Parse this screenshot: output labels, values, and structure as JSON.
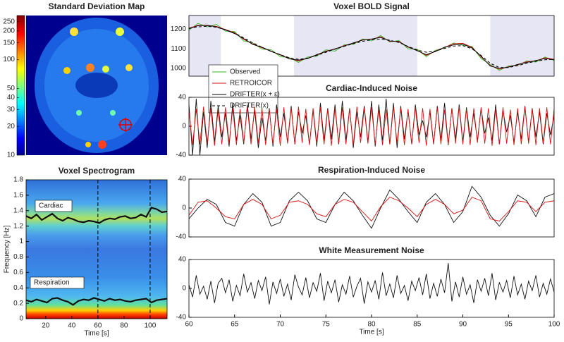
{
  "chart_data": [
    {
      "type": "image",
      "title": "Standard Deviation Map",
      "colormap": "jet",
      "clog": true,
      "clim": [
        10,
        290
      ],
      "cticks": [
        10,
        20,
        30,
        40,
        50,
        100,
        150,
        200,
        250
      ]
    },
    {
      "type": "spectrogram",
      "title": "Voxel Spectrogram",
      "xlabel": "Time [s]",
      "ylabel": "Frequency [Hz]",
      "xlim": [
        5,
        113
      ],
      "xticks": [
        20,
        40,
        60,
        80,
        100
      ],
      "ylim": [
        0,
        1.8
      ],
      "yticks": [
        0,
        0.2,
        0.4,
        0.6,
        0.8,
        1,
        1.2,
        1.4,
        1.6,
        1.8
      ],
      "vlines": [
        60,
        100
      ],
      "x": [
        5,
        9,
        13,
        17,
        21,
        25,
        29,
        33,
        37,
        41,
        45,
        49,
        53,
        57,
        61,
        65,
        69,
        73,
        77,
        81,
        85,
        89,
        93,
        97,
        101,
        105,
        109,
        113
      ],
      "series": [
        {
          "name": "Cardiac",
          "color": "#111111",
          "values": [
            1.33,
            1.3,
            1.35,
            1.28,
            1.32,
            1.36,
            1.3,
            1.27,
            1.31,
            1.29,
            1.26,
            1.25,
            1.27,
            1.26,
            1.24,
            1.28,
            1.3,
            1.29,
            1.32,
            1.33,
            1.3,
            1.31,
            1.35,
            1.32,
            1.44,
            1.42,
            1.38,
            1.39
          ]
        },
        {
          "name": "Respiration",
          "color": "#111111",
          "values": [
            0.24,
            0.22,
            0.25,
            0.23,
            0.21,
            0.26,
            0.27,
            0.24,
            0.22,
            0.18,
            0.23,
            0.25,
            0.24,
            0.27,
            0.25,
            0.23,
            0.26,
            0.24,
            0.25,
            0.23,
            0.22,
            0.24,
            0.25,
            0.26,
            0.21,
            0.24,
            0.25,
            0.26
          ]
        }
      ]
    },
    {
      "type": "line",
      "title": "Voxel BOLD Signal",
      "xlim": [
        60,
        100
      ],
      "ylim": [
        960,
        1270
      ],
      "yticks": [
        1000,
        1100,
        1200
      ],
      "shaded": [
        [
          60,
          63.5
        ],
        [
          71.5,
          85
        ],
        [
          93,
          100
        ]
      ],
      "legend": "lower left",
      "x": [
        60,
        61,
        62,
        63,
        64,
        65,
        66,
        67,
        68,
        69,
        70,
        71,
        72,
        73,
        74,
        75,
        76,
        77,
        78,
        79,
        80,
        81,
        82,
        83,
        84,
        85,
        86,
        87,
        88,
        89,
        90,
        91,
        92,
        93,
        94,
        95,
        96,
        97,
        98,
        99,
        100
      ],
      "series": [
        {
          "name": "Observed",
          "color": "#33bb22",
          "values": [
            1195,
            1230,
            1212,
            1225,
            1190,
            1188,
            1140,
            1130,
            1098,
            1095,
            1060,
            1055,
            1030,
            1058,
            1062,
            1095,
            1088,
            1120,
            1122,
            1150,
            1140,
            1168,
            1135,
            1142,
            1100,
            1098,
            1060,
            1092,
            1105,
            1130,
            1118,
            1112,
            1050,
            1020,
            990,
            1012,
            1015,
            1038,
            1032,
            1058,
            1040
          ]
        },
        {
          "name": "RETROICOR",
          "color": "#dd1111",
          "values": [
            1205,
            1220,
            1218,
            1215,
            1198,
            1182,
            1148,
            1125,
            1105,
            1088,
            1068,
            1050,
            1038,
            1052,
            1068,
            1088,
            1098,
            1116,
            1128,
            1146,
            1148,
            1162,
            1138,
            1138,
            1108,
            1092,
            1066,
            1088,
            1108,
            1126,
            1128,
            1108,
            1058,
            1015,
            996,
            1008,
            1018,
            1034,
            1038,
            1054,
            1046
          ]
        },
        {
          "name": "DRIFTER(x + ε)",
          "color": "#000000",
          "values": [
            1202,
            1218,
            1220,
            1212,
            1196,
            1178,
            1152,
            1122,
            1108,
            1086,
            1070,
            1048,
            1042,
            1050,
            1070,
            1086,
            1100,
            1114,
            1130,
            1144,
            1150,
            1158,
            1140,
            1136,
            1110,
            1090,
            1070,
            1086,
            1108,
            1120,
            1124,
            1104,
            1062,
            1012,
            1000,
            1006,
            1020,
            1030,
            1040,
            1050,
            1044
          ]
        },
        {
          "name": "DRIFTER(x)",
          "color": "#000000",
          "dash": true,
          "values": [
            1205,
            1212,
            1215,
            1210,
            1198,
            1180,
            1156,
            1130,
            1108,
            1088,
            1070,
            1054,
            1046,
            1052,
            1066,
            1082,
            1098,
            1112,
            1126,
            1138,
            1146,
            1150,
            1144,
            1132,
            1112,
            1094,
            1082,
            1088,
            1102,
            1114,
            1116,
            1100,
            1066,
            1026,
            1004,
            1004,
            1014,
            1026,
            1036,
            1044,
            1046
          ]
        }
      ]
    },
    {
      "type": "line",
      "title": "Cardiac-Induced Noise",
      "xlim": [
        60,
        100
      ],
      "ylim": [
        -40,
        40
      ],
      "yticks": [
        -40,
        0,
        40
      ],
      "x": [
        60,
        60.4,
        60.8,
        61.2,
        61.6,
        62,
        62.4,
        62.8,
        63.2,
        63.6,
        64,
        64.4,
        64.8,
        65.2,
        65.6,
        66,
        66.4,
        66.8,
        67.2,
        67.6,
        68,
        68.4,
        68.8,
        69.2,
        69.6,
        70,
        70.4,
        70.8,
        71.2,
        71.6,
        72,
        72.4,
        72.8,
        73.2,
        73.6,
        74,
        74.4,
        74.8,
        75.2,
        75.6,
        76,
        76.4,
        76.8,
        77.2,
        77.6,
        78,
        78.4,
        78.8,
        79.2,
        79.6,
        80,
        80.4,
        80.8,
        81.2,
        81.6,
        82,
        82.4,
        82.8,
        83.2,
        83.6,
        84,
        84.4,
        84.8,
        85.2,
        85.6,
        86,
        86.4,
        86.8,
        87.2,
        87.6,
        88,
        88.4,
        88.8,
        89.2,
        89.6,
        90,
        90.4,
        90.8,
        91.2,
        91.6,
        92,
        92.4,
        92.8,
        93.2,
        93.6,
        94,
        94.4,
        94.8,
        95.2,
        95.6,
        96,
        96.4,
        96.8,
        97.2,
        97.6,
        98,
        98.4,
        98.8,
        99.2,
        99.6,
        100
      ],
      "series": [
        {
          "color": "#111111",
          "values": [
            30,
            -40,
            38,
            -40,
            20,
            -30,
            35,
            -22,
            28,
            -15,
            18,
            -28,
            32,
            -20,
            15,
            -25,
            30,
            -18,
            22,
            -30,
            12,
            -20,
            25,
            -28,
            30,
            -15,
            18,
            -22,
            28,
            -25,
            20,
            -10,
            15,
            -25,
            22,
            -28,
            32,
            -20,
            25,
            -18,
            30,
            -25,
            35,
            -20,
            25,
            -30,
            20,
            -15,
            28,
            -22,
            35,
            -28,
            30,
            -20,
            38,
            -25,
            32,
            -30,
            28,
            -18,
            22,
            -25,
            30,
            -12,
            8,
            -15,
            20,
            -25,
            28,
            -20,
            32,
            -26,
            25,
            -18,
            30,
            -22,
            26,
            -15,
            18,
            -20,
            25,
            -10,
            12,
            -20,
            30,
            -25,
            22,
            -8,
            15,
            -22,
            20,
            -18,
            28,
            -22,
            25,
            -15,
            20,
            -25,
            18,
            -12,
            15
          ]
        },
        {
          "color": "#dd1111",
          "values": [
            22,
            -26,
            24,
            -25,
            27,
            -24,
            25,
            -27,
            23,
            -25,
            26,
            -24,
            25,
            -26,
            24,
            -23,
            26,
            -25,
            27,
            -24,
            25,
            -26,
            23,
            -25,
            24,
            -27,
            26,
            -24,
            25,
            -25,
            27,
            -23,
            24,
            -26,
            25,
            -24,
            26,
            -25,
            23,
            -27,
            25,
            -24,
            26,
            -25,
            24,
            -26,
            27,
            -23,
            25,
            -24,
            26,
            -25,
            24,
            -26,
            23,
            -25,
            27,
            -24,
            25,
            -26,
            24,
            -25,
            26,
            -23,
            25,
            -27,
            24,
            -24,
            26,
            -25,
            23,
            -26,
            25,
            -24,
            27,
            -25,
            24,
            -26,
            25,
            -23,
            26,
            -24,
            25,
            -27,
            24,
            -25,
            26,
            -24,
            23,
            -26,
            25,
            -25,
            27,
            -24,
            24,
            -26,
            25,
            -23,
            26,
            -25,
            24
          ]
        }
      ]
    },
    {
      "type": "line",
      "title": "Respiration-Induced Noise",
      "xlim": [
        60,
        100
      ],
      "ylim": [
        -40,
        40
      ],
      "yticks": [
        -40,
        0,
        40
      ],
      "x": [
        60,
        61,
        62,
        63,
        64,
        65,
        66,
        67,
        68,
        69,
        70,
        71,
        72,
        73,
        74,
        75,
        76,
        77,
        78,
        79,
        80,
        81,
        82,
        83,
        84,
        85,
        86,
        87,
        88,
        89,
        90,
        91,
        92,
        93,
        94,
        95,
        96,
        97,
        98,
        99,
        100
      ],
      "series": [
        {
          "color": "#111111",
          "values": [
            -15,
            0,
            12,
            5,
            -20,
            -25,
            5,
            20,
            8,
            -25,
            -20,
            10,
            22,
            10,
            -15,
            -20,
            5,
            22,
            10,
            -10,
            -28,
            0,
            25,
            12,
            -5,
            -20,
            8,
            20,
            5,
            -20,
            -5,
            30,
            15,
            -10,
            -25,
            -8,
            18,
            10,
            -12,
            15,
            20
          ]
        },
        {
          "color": "#dd1111",
          "values": [
            -10,
            8,
            10,
            0,
            -12,
            -15,
            5,
            12,
            5,
            -15,
            -10,
            8,
            10,
            5,
            -8,
            -12,
            5,
            12,
            8,
            -5,
            -18,
            2,
            15,
            10,
            0,
            -12,
            5,
            12,
            5,
            -8,
            -3,
            15,
            10,
            -15,
            -18,
            -5,
            10,
            8,
            -5,
            8,
            10
          ]
        }
      ]
    },
    {
      "type": "line",
      "title": "White Measurement Noise",
      "xlabel": "Time [s]",
      "xlim": [
        60,
        100
      ],
      "xticks": [
        60,
        65,
        70,
        75,
        80,
        85,
        90,
        95,
        100
      ],
      "ylim": [
        -40,
        40
      ],
      "yticks": [
        -40,
        0,
        40
      ],
      "x": [
        60,
        60.4,
        60.8,
        61.2,
        61.6,
        62,
        62.4,
        62.8,
        63.2,
        63.6,
        64,
        64.4,
        64.8,
        65.2,
        65.6,
        66,
        66.4,
        66.8,
        67.2,
        67.6,
        68,
        68.4,
        68.8,
        69.2,
        69.6,
        70,
        70.4,
        70.8,
        71.2,
        71.6,
        72,
        72.4,
        72.8,
        73.2,
        73.6,
        74,
        74.4,
        74.8,
        75.2,
        75.6,
        76,
        76.4,
        76.8,
        77.2,
        77.6,
        78,
        78.4,
        78.8,
        79.2,
        79.6,
        80,
        80.4,
        80.8,
        81.2,
        81.6,
        82,
        82.4,
        82.8,
        83.2,
        83.6,
        84,
        84.4,
        84.8,
        85.2,
        85.6,
        86,
        86.4,
        86.8,
        87.2,
        87.6,
        88,
        88.4,
        88.8,
        89.2,
        89.6,
        90,
        90.4,
        90.8,
        91.2,
        91.6,
        92,
        92.4,
        92.8,
        93.2,
        93.6,
        94,
        94.4,
        94.8,
        95.2,
        95.6,
        96,
        96.4,
        96.8,
        97.2,
        97.6,
        98,
        98.4,
        98.8,
        99.2,
        99.6,
        100
      ],
      "series": [
        {
          "color": "#111111",
          "values": [
            5,
            -12,
            18,
            -8,
            3,
            -15,
            10,
            -20,
            7,
            14,
            -6,
            12,
            -18,
            4,
            -10,
            20,
            -5,
            8,
            -14,
            11,
            -3,
            16,
            -22,
            9,
            -7,
            13,
            -11,
            6,
            -16,
            19,
            2,
            -9,
            15,
            -13,
            8,
            -4,
            21,
            -17,
            10,
            -6,
            12,
            -19,
            5,
            -8,
            17,
            -12,
            3,
            14,
            -21,
            9,
            -5,
            11,
            -15,
            22,
            -10,
            6,
            -13,
            18,
            -7,
            4,
            -17,
            10,
            -3,
            15,
            -9,
            20,
            -14,
            7,
            -11,
            13,
            -6,
            35,
            -18,
            9,
            -12,
            16,
            -8,
            5,
            -20,
            12,
            -4,
            14,
            -10,
            21,
            -16,
            8,
            -5,
            11,
            -13,
            17,
            -9,
            6,
            -15,
            10,
            -3,
            18,
            -12,
            7,
            -8,
            13,
            -5
          ]
        }
      ]
    }
  ]
}
